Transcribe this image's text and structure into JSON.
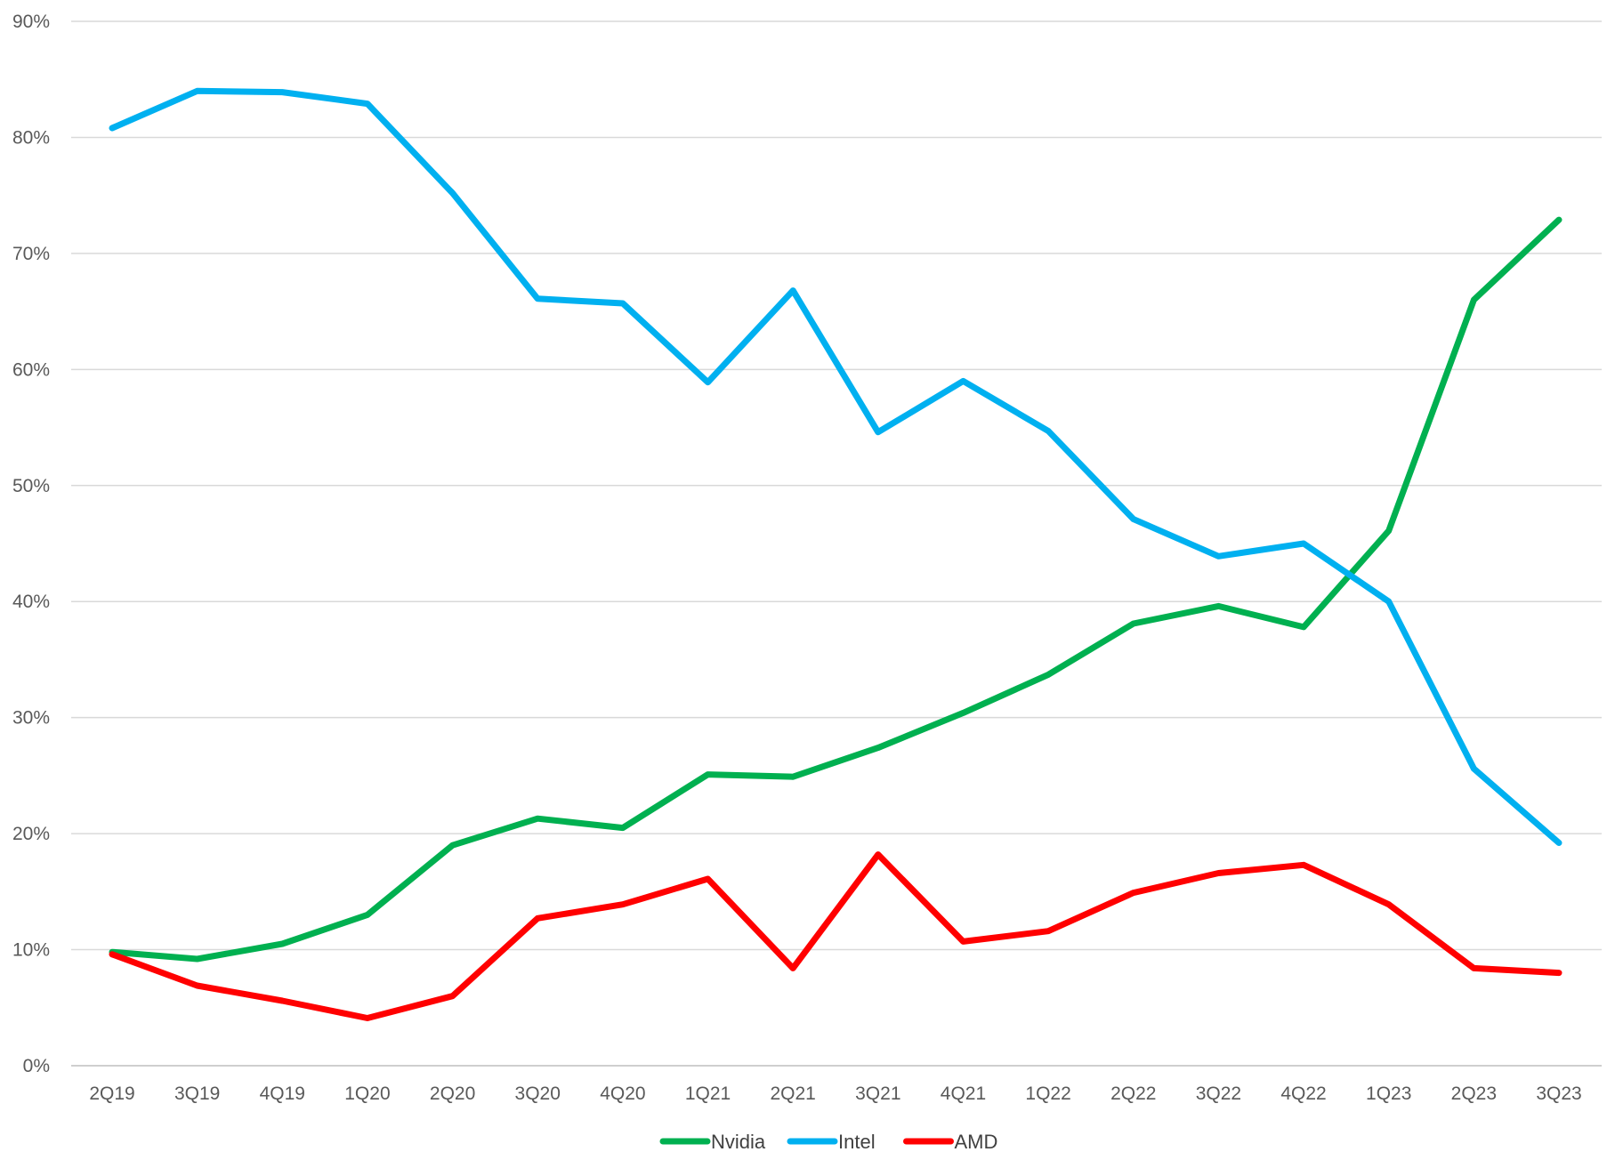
{
  "chart_data": {
    "type": "line",
    "title": "",
    "xlabel": "",
    "ylabel": "",
    "categories": [
      "2Q19",
      "3Q19",
      "4Q19",
      "1Q20",
      "2Q20",
      "3Q20",
      "4Q20",
      "1Q21",
      "2Q21",
      "3Q21",
      "4Q21",
      "1Q22",
      "2Q22",
      "3Q22",
      "4Q22",
      "1Q23",
      "2Q23",
      "3Q23"
    ],
    "y_ticks": [
      "0%",
      "10%",
      "20%",
      "30%",
      "40%",
      "50%",
      "60%",
      "70%",
      "80%",
      "90%"
    ],
    "ylim": [
      0,
      90
    ],
    "grid": true,
    "legend_position": "bottom",
    "series": [
      {
        "name": "Nvidia",
        "color": "#00b050",
        "values": [
          9.8,
          9.2,
          10.5,
          13.0,
          19.0,
          21.3,
          20.5,
          25.1,
          24.9,
          27.4,
          30.4,
          33.7,
          38.1,
          39.6,
          37.8,
          46.1,
          66.0,
          72.9
        ]
      },
      {
        "name": "Intel",
        "color": "#00b0f0",
        "values": [
          80.8,
          84.0,
          83.9,
          82.9,
          75.2,
          66.1,
          65.7,
          58.9,
          66.8,
          54.6,
          59.0,
          54.7,
          47.1,
          43.9,
          45.0,
          40.0,
          25.6,
          19.2
        ]
      },
      {
        "name": "AMD",
        "color": "#ff0000",
        "values": [
          9.6,
          6.9,
          5.6,
          4.1,
          6.0,
          12.7,
          13.9,
          16.1,
          8.4,
          18.2,
          10.7,
          11.6,
          14.9,
          16.6,
          17.3,
          13.9,
          8.4,
          8.0
        ]
      }
    ]
  }
}
